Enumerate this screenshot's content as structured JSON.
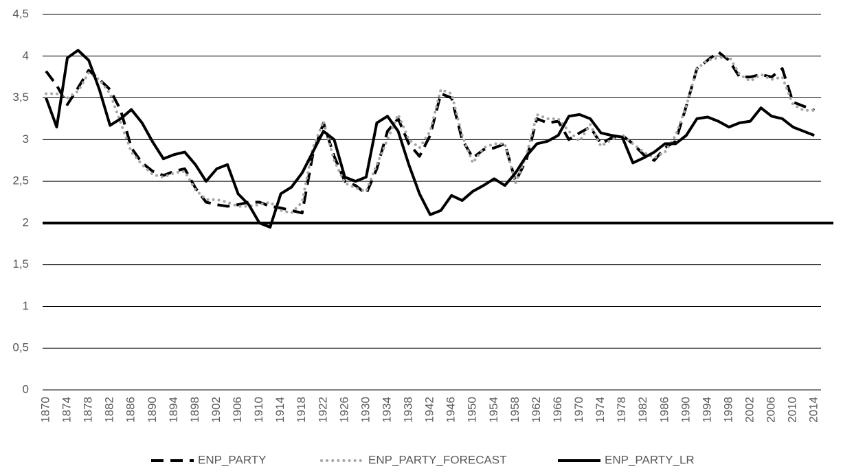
{
  "chart_data": {
    "type": "line",
    "x": [
      1870,
      1872,
      1874,
      1876,
      1878,
      1880,
      1882,
      1884,
      1886,
      1888,
      1890,
      1892,
      1894,
      1896,
      1898,
      1900,
      1902,
      1904,
      1906,
      1908,
      1910,
      1912,
      1914,
      1916,
      1918,
      1920,
      1922,
      1924,
      1926,
      1928,
      1930,
      1932,
      1934,
      1936,
      1938,
      1940,
      1942,
      1944,
      1946,
      1948,
      1950,
      1952,
      1954,
      1956,
      1958,
      1960,
      1962,
      1964,
      1966,
      1968,
      1970,
      1972,
      1974,
      1976,
      1978,
      1980,
      1982,
      1984,
      1986,
      1988,
      1990,
      1992,
      1994,
      1996,
      1998,
      2000,
      2002,
      2004,
      2006,
      2008,
      2010,
      2012,
      2014
    ],
    "xlim": [
      1870,
      2015
    ],
    "xticks": [
      1870,
      1874,
      1878,
      1882,
      1886,
      1890,
      1894,
      1898,
      1902,
      1906,
      1910,
      1914,
      1918,
      1922,
      1926,
      1930,
      1934,
      1938,
      1942,
      1946,
      1950,
      1954,
      1958,
      1962,
      1966,
      1970,
      1974,
      1978,
      1982,
      1986,
      1990,
      1994,
      1998,
      2002,
      2006,
      2010,
      2014
    ],
    "ylim": [
      0,
      4.5
    ],
    "yticks": [
      0,
      {
        "value": 0.5,
        "label": "0,5"
      },
      1,
      {
        "value": 1.5,
        "label": "1,5"
      },
      2,
      {
        "value": 2.5,
        "label": "2,5"
      },
      3,
      {
        "value": 3.5,
        "label": "3,5"
      },
      4,
      {
        "value": 4.5,
        "label": "4,5"
      }
    ],
    "grid": true,
    "reference_line": 2,
    "legend": "bottom",
    "series": [
      {
        "name": "ENP_PARTY",
        "color": "#000000",
        "style": "dash",
        "values": [
          3.82,
          3.65,
          3.42,
          3.62,
          3.83,
          3.72,
          3.6,
          3.35,
          2.9,
          2.72,
          2.62,
          2.57,
          2.62,
          2.65,
          2.42,
          2.25,
          2.22,
          2.2,
          2.22,
          2.25,
          2.25,
          2.2,
          2.18,
          2.15,
          2.12,
          2.82,
          3.2,
          2.8,
          2.5,
          2.45,
          2.35,
          2.65,
          3.1,
          3.25,
          2.95,
          2.8,
          3.05,
          3.55,
          3.5,
          3.0,
          2.78,
          2.88,
          2.9,
          2.95,
          2.5,
          2.75,
          3.25,
          3.2,
          3.22,
          3.0,
          3.08,
          3.15,
          2.95,
          3.02,
          3.05,
          2.95,
          2.82,
          2.75,
          2.9,
          2.98,
          3.4,
          3.85,
          3.95,
          4.05,
          3.95,
          3.75,
          3.75,
          3.78,
          3.75,
          3.85,
          3.45,
          3.4,
          3.35
        ]
      },
      {
        "name": "ENP_PARTY_FORECAST",
        "color": "#a6a6a6",
        "style": "dot",
        "values": [
          3.55,
          3.55,
          3.5,
          3.58,
          3.8,
          3.72,
          3.55,
          3.2,
          2.85,
          2.7,
          2.58,
          2.55,
          2.6,
          2.62,
          2.4,
          2.28,
          2.28,
          2.25,
          2.2,
          2.2,
          2.22,
          2.25,
          2.15,
          2.12,
          2.25,
          2.9,
          3.22,
          2.75,
          2.48,
          2.42,
          2.38,
          2.7,
          3.0,
          3.3,
          3.0,
          2.9,
          3.1,
          3.6,
          3.55,
          3.05,
          2.72,
          2.9,
          2.95,
          2.95,
          2.48,
          2.8,
          3.3,
          3.25,
          3.25,
          3.1,
          2.98,
          3.18,
          2.92,
          3.0,
          3.05,
          2.95,
          2.85,
          2.78,
          2.85,
          3.05,
          3.4,
          3.85,
          3.95,
          3.98,
          4.0,
          3.78,
          3.7,
          3.78,
          3.72,
          3.75,
          3.42,
          3.35,
          3.35
        ]
      },
      {
        "name": "ENP_PARTY_LR",
        "color": "#000000",
        "style": "solid",
        "values": [
          3.5,
          3.15,
          3.98,
          4.07,
          3.95,
          3.6,
          3.17,
          3.25,
          3.36,
          3.2,
          2.97,
          2.77,
          2.82,
          2.85,
          2.7,
          2.5,
          2.65,
          2.7,
          2.35,
          2.22,
          2.0,
          1.95,
          2.35,
          2.43,
          2.6,
          2.85,
          3.1,
          3.0,
          2.55,
          2.5,
          2.55,
          3.2,
          3.28,
          3.1,
          2.7,
          2.35,
          2.1,
          2.15,
          2.33,
          2.27,
          2.38,
          2.45,
          2.53,
          2.45,
          2.6,
          2.8,
          2.95,
          2.98,
          3.05,
          3.28,
          3.3,
          3.25,
          3.08,
          3.05,
          3.03,
          2.72,
          2.78,
          2.85,
          2.95,
          2.95,
          3.05,
          3.25,
          3.27,
          3.22,
          3.15,
          3.2,
          3.22,
          3.38,
          3.28,
          3.25,
          3.15,
          3.1,
          3.05
        ]
      }
    ]
  }
}
